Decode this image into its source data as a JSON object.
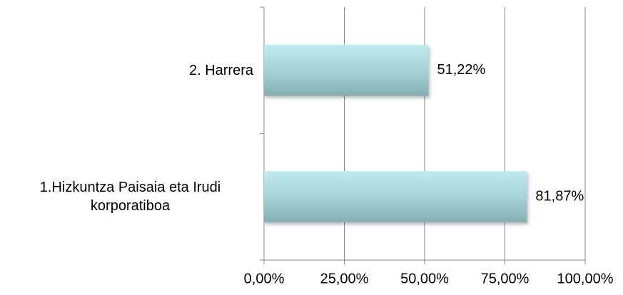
{
  "chart_data": {
    "type": "bar",
    "orientation": "horizontal",
    "categories": [
      "2. Harrera",
      "1.Hizkuntza Paisaia eta Irudi korporatiboa"
    ],
    "values": [
      51.22,
      81.87
    ],
    "value_labels": [
      "51,22%",
      "81,87%"
    ],
    "xlim": [
      0,
      100
    ],
    "xticks": [
      {
        "value": 0,
        "label": "0,00%"
      },
      {
        "value": 25,
        "label": "25,00%"
      },
      {
        "value": 50,
        "label": "50,00%"
      },
      {
        "value": 75,
        "label": "75,00%"
      },
      {
        "value": 100,
        "label": "100,00%"
      }
    ],
    "grid": true
  }
}
